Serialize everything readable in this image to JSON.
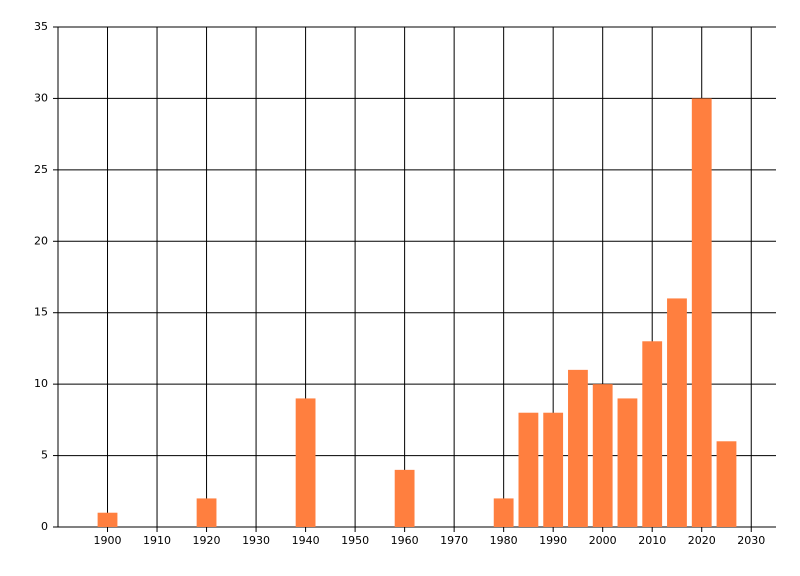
{
  "chart_data": {
    "type": "bar",
    "x": [
      1900,
      1920,
      1940,
      1960,
      1980,
      1985,
      1990,
      1995,
      2000,
      2005,
      2010,
      2015,
      2020,
      2025
    ],
    "values": [
      1,
      2,
      9,
      4,
      2,
      8,
      8,
      11,
      10,
      9,
      13,
      16,
      30,
      6
    ],
    "color": "#ff7f3f",
    "xlim": [
      1890,
      2035
    ],
    "xticks": [
      1900,
      1910,
      1920,
      1930,
      1940,
      1950,
      1960,
      1970,
      1980,
      1990,
      2000,
      2010,
      2020,
      2030
    ],
    "ylim": [
      0,
      35
    ],
    "yticks": [
      0,
      5,
      10,
      15,
      20,
      25,
      30,
      35
    ],
    "grid": true
  }
}
